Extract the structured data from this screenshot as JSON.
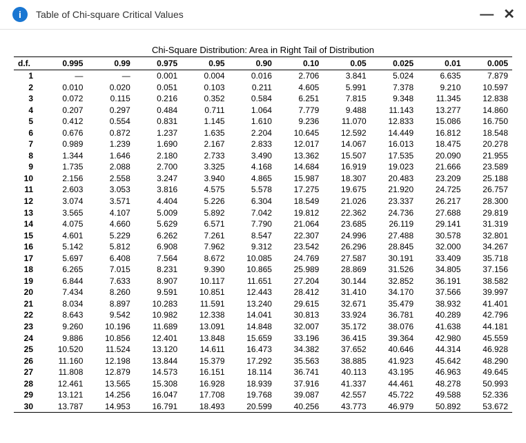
{
  "header": {
    "title": "Table of Chi-square Critical Values",
    "info_glyph": "i",
    "minimize_glyph": "—",
    "close_glyph": "✕"
  },
  "table": {
    "caption": "Chi-Square Distribution: Area in Right Tail of Distribution",
    "df_header": "d.f.",
    "alpha_headers": [
      "0.995",
      "0.99",
      "0.975",
      "0.95",
      "0.90",
      "0.10",
      "0.05",
      "0.025",
      "0.01",
      "0.005"
    ],
    "rows": [
      {
        "df": "1",
        "v": [
          "—",
          "—",
          "0.001",
          "0.004",
          "0.016",
          "2.706",
          "3.841",
          "5.024",
          "6.635",
          "7.879"
        ]
      },
      {
        "df": "2",
        "v": [
          "0.010",
          "0.020",
          "0.051",
          "0.103",
          "0.211",
          "4.605",
          "5.991",
          "7.378",
          "9.210",
          "10.597"
        ]
      },
      {
        "df": "3",
        "v": [
          "0.072",
          "0.115",
          "0.216",
          "0.352",
          "0.584",
          "6.251",
          "7.815",
          "9.348",
          "11.345",
          "12.838"
        ]
      },
      {
        "df": "4",
        "v": [
          "0.207",
          "0.297",
          "0.484",
          "0.711",
          "1.064",
          "7.779",
          "9.488",
          "11.143",
          "13.277",
          "14.860"
        ]
      },
      {
        "df": "5",
        "v": [
          "0.412",
          "0.554",
          "0.831",
          "1.145",
          "1.610",
          "9.236",
          "11.070",
          "12.833",
          "15.086",
          "16.750"
        ]
      },
      {
        "df": "6",
        "v": [
          "0.676",
          "0.872",
          "1.237",
          "1.635",
          "2.204",
          "10.645",
          "12.592",
          "14.449",
          "16.812",
          "18.548"
        ]
      },
      {
        "df": "7",
        "v": [
          "0.989",
          "1.239",
          "1.690",
          "2.167",
          "2.833",
          "12.017",
          "14.067",
          "16.013",
          "18.475",
          "20.278"
        ]
      },
      {
        "df": "8",
        "v": [
          "1.344",
          "1.646",
          "2.180",
          "2.733",
          "3.490",
          "13.362",
          "15.507",
          "17.535",
          "20.090",
          "21.955"
        ]
      },
      {
        "df": "9",
        "v": [
          "1.735",
          "2.088",
          "2.700",
          "3.325",
          "4.168",
          "14.684",
          "16.919",
          "19.023",
          "21.666",
          "23.589"
        ]
      },
      {
        "df": "10",
        "v": [
          "2.156",
          "2.558",
          "3.247",
          "3.940",
          "4.865",
          "15.987",
          "18.307",
          "20.483",
          "23.209",
          "25.188"
        ]
      },
      {
        "df": "11",
        "v": [
          "2.603",
          "3.053",
          "3.816",
          "4.575",
          "5.578",
          "17.275",
          "19.675",
          "21.920",
          "24.725",
          "26.757"
        ]
      },
      {
        "df": "12",
        "v": [
          "3.074",
          "3.571",
          "4.404",
          "5.226",
          "6.304",
          "18.549",
          "21.026",
          "23.337",
          "26.217",
          "28.300"
        ]
      },
      {
        "df": "13",
        "v": [
          "3.565",
          "4.107",
          "5.009",
          "5.892",
          "7.042",
          "19.812",
          "22.362",
          "24.736",
          "27.688",
          "29.819"
        ]
      },
      {
        "df": "14",
        "v": [
          "4.075",
          "4.660",
          "5.629",
          "6.571",
          "7.790",
          "21.064",
          "23.685",
          "26.119",
          "29.141",
          "31.319"
        ]
      },
      {
        "df": "15",
        "v": [
          "4.601",
          "5.229",
          "6.262",
          "7.261",
          "8.547",
          "22.307",
          "24.996",
          "27.488",
          "30.578",
          "32.801"
        ]
      },
      {
        "df": "16",
        "v": [
          "5.142",
          "5.812",
          "6.908",
          "7.962",
          "9.312",
          "23.542",
          "26.296",
          "28.845",
          "32.000",
          "34.267"
        ]
      },
      {
        "df": "17",
        "v": [
          "5.697",
          "6.408",
          "7.564",
          "8.672",
          "10.085",
          "24.769",
          "27.587",
          "30.191",
          "33.409",
          "35.718"
        ]
      },
      {
        "df": "18",
        "v": [
          "6.265",
          "7.015",
          "8.231",
          "9.390",
          "10.865",
          "25.989",
          "28.869",
          "31.526",
          "34.805",
          "37.156"
        ]
      },
      {
        "df": "19",
        "v": [
          "6.844",
          "7.633",
          "8.907",
          "10.117",
          "11.651",
          "27.204",
          "30.144",
          "32.852",
          "36.191",
          "38.582"
        ]
      },
      {
        "df": "20",
        "v": [
          "7.434",
          "8.260",
          "9.591",
          "10.851",
          "12.443",
          "28.412",
          "31.410",
          "34.170",
          "37.566",
          "39.997"
        ]
      },
      {
        "df": "21",
        "v": [
          "8.034",
          "8.897",
          "10.283",
          "11.591",
          "13.240",
          "29.615",
          "32.671",
          "35.479",
          "38.932",
          "41.401"
        ]
      },
      {
        "df": "22",
        "v": [
          "8.643",
          "9.542",
          "10.982",
          "12.338",
          "14.041",
          "30.813",
          "33.924",
          "36.781",
          "40.289",
          "42.796"
        ]
      },
      {
        "df": "23",
        "v": [
          "9.260",
          "10.196",
          "11.689",
          "13.091",
          "14.848",
          "32.007",
          "35.172",
          "38.076",
          "41.638",
          "44.181"
        ]
      },
      {
        "df": "24",
        "v": [
          "9.886",
          "10.856",
          "12.401",
          "13.848",
          "15.659",
          "33.196",
          "36.415",
          "39.364",
          "42.980",
          "45.559"
        ]
      },
      {
        "df": "25",
        "v": [
          "10.520",
          "11.524",
          "13.120",
          "14.611",
          "16.473",
          "34.382",
          "37.652",
          "40.646",
          "44.314",
          "46.928"
        ]
      },
      {
        "df": "26",
        "v": [
          "11.160",
          "12.198",
          "13.844",
          "15.379",
          "17.292",
          "35.563",
          "38.885",
          "41.923",
          "45.642",
          "48.290"
        ]
      },
      {
        "df": "27",
        "v": [
          "11.808",
          "12.879",
          "14.573",
          "16.151",
          "18.114",
          "36.741",
          "40.113",
          "43.195",
          "46.963",
          "49.645"
        ]
      },
      {
        "df": "28",
        "v": [
          "12.461",
          "13.565",
          "15.308",
          "16.928",
          "18.939",
          "37.916",
          "41.337",
          "44.461",
          "48.278",
          "50.993"
        ]
      },
      {
        "df": "29",
        "v": [
          "13.121",
          "14.256",
          "16.047",
          "17.708",
          "19.768",
          "39.087",
          "42.557",
          "45.722",
          "49.588",
          "52.336"
        ]
      },
      {
        "df": "30",
        "v": [
          "13.787",
          "14.953",
          "16.791",
          "18.493",
          "20.599",
          "40.256",
          "43.773",
          "46.979",
          "50.892",
          "53.672"
        ]
      }
    ]
  },
  "style": {
    "accent": "#1976d2",
    "text": "#333333",
    "border": "#e0e0e0",
    "table_border": "#000000",
    "bg": "#ffffff"
  }
}
